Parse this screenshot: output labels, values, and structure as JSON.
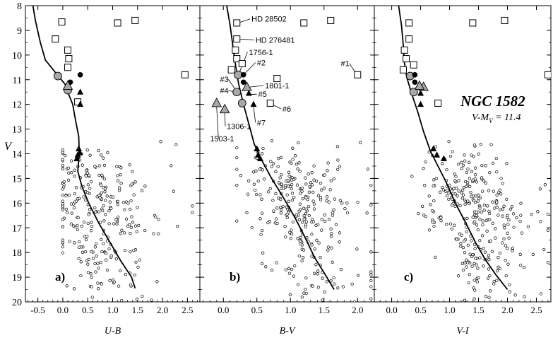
{
  "colors": {
    "ink": "#000000",
    "gray_marker": "#a8a8a8",
    "background": "#ffffff"
  },
  "y_axis_label": "V",
  "chart_data": [
    {
      "type": "scatter",
      "panel_label": "a)",
      "xlabel": "U-B",
      "xlim": [
        -0.75,
        2.75
      ],
      "ylim": [
        20,
        8
      ],
      "y_reversed": true,
      "x_ticks": [
        "-0.5",
        "0.0",
        "0.5",
        "1.0",
        "1.5",
        "2.0",
        "2.5"
      ],
      "x_tick_values": [
        -0.5,
        0.0,
        0.5,
        1.0,
        1.5,
        2.0,
        2.5
      ],
      "y_ticks": [
        "8",
        "9",
        "10",
        "11",
        "12",
        "13",
        "14",
        "15",
        "16",
        "17",
        "18",
        "19",
        "20"
      ],
      "y_tick_values": [
        8,
        9,
        10,
        11,
        12,
        13,
        14,
        15,
        16,
        17,
        18,
        19,
        20
      ],
      "isochrone": [
        [
          -0.6,
          8.0
        ],
        [
          -0.55,
          8.6
        ],
        [
          -0.45,
          9.5
        ],
        [
          -0.35,
          10.2
        ],
        [
          -0.15,
          10.7
        ],
        [
          0.05,
          11.2
        ],
        [
          0.12,
          11.6
        ],
        [
          0.2,
          12.0
        ],
        [
          0.26,
          12.7
        ],
        [
          0.32,
          13.3
        ],
        [
          0.33,
          14.0
        ],
        [
          0.3,
          14.7
        ],
        [
          0.38,
          15.3
        ],
        [
          0.52,
          16.0
        ],
        [
          0.72,
          16.8
        ],
        [
          0.95,
          17.6
        ],
        [
          1.15,
          18.3
        ],
        [
          1.38,
          19.0
        ],
        [
          1.45,
          19.45
        ]
      ],
      "open_squares": [
        [
          -0.02,
          8.66
        ],
        [
          -0.15,
          9.35
        ],
        [
          0.1,
          9.8
        ],
        [
          0.12,
          10.15
        ],
        [
          0.1,
          10.5
        ],
        [
          1.1,
          8.7
        ],
        [
          1.45,
          8.6
        ],
        [
          2.45,
          10.8
        ],
        [
          0.3,
          11.9
        ]
      ],
      "gray_circles": [
        [
          -0.1,
          10.85
        ],
        [
          0.1,
          11.42
        ]
      ],
      "black_circles": [
        [
          0.35,
          10.8
        ],
        [
          0.15,
          11.1
        ]
      ],
      "gray_triangles": [
        [
          0.1,
          11.25
        ]
      ],
      "black_triangles": [
        [
          0.35,
          11.5
        ],
        [
          0.35,
          12.0
        ],
        [
          0.32,
          13.8
        ],
        [
          0.34,
          13.95
        ],
        [
          0.3,
          14.05
        ],
        [
          0.28,
          14.2
        ]
      ],
      "field_seed": 11,
      "field_x_center": 0.65,
      "field_x_spread": 0.55,
      "field_x_min": 0.0,
      "field_x_max": 2.6,
      "field_count": 300
    },
    {
      "type": "scatter",
      "panel_label": "b)",
      "xlabel": "B-V",
      "xlim": [
        -0.35,
        2.25
      ],
      "ylim": [
        20,
        8
      ],
      "y_reversed": true,
      "x_ticks": [
        "0.0",
        "0.5",
        "1.0",
        "1.5",
        "2.0"
      ],
      "x_tick_values": [
        0.0,
        0.5,
        1.0,
        1.5,
        2.0
      ],
      "y_ticks": [
        "8",
        "9",
        "10",
        "11",
        "12",
        "13",
        "14",
        "15",
        "16",
        "17",
        "18",
        "19",
        "20"
      ],
      "y_tick_values": [
        8,
        9,
        10,
        11,
        12,
        13,
        14,
        15,
        16,
        17,
        18,
        19,
        20
      ],
      "isochrone": [
        [
          0.05,
          8.0
        ],
        [
          0.1,
          8.8
        ],
        [
          0.14,
          9.6
        ],
        [
          0.17,
          10.2
        ],
        [
          0.2,
          10.75
        ],
        [
          0.23,
          11.2
        ],
        [
          0.3,
          12.0
        ],
        [
          0.38,
          12.8
        ],
        [
          0.46,
          13.6
        ],
        [
          0.56,
          14.2
        ],
        [
          0.72,
          15.0
        ],
        [
          0.9,
          15.8
        ],
        [
          1.07,
          16.6
        ],
        [
          1.22,
          17.4
        ],
        [
          1.36,
          18.2
        ],
        [
          1.52,
          18.9
        ],
        [
          1.65,
          19.5
        ]
      ],
      "open_squares": [
        [
          0.2,
          8.7
        ],
        [
          0.2,
          9.35
        ],
        [
          0.18,
          9.8
        ],
        [
          0.2,
          10.15
        ],
        [
          0.12,
          10.6
        ],
        [
          0.28,
          10.35
        ],
        [
          0.8,
          10.95
        ],
        [
          0.7,
          11.95
        ],
        [
          1.2,
          8.7
        ],
        [
          1.6,
          8.6
        ],
        [
          2.0,
          10.8
        ]
      ],
      "gray_circles": [
        [
          0.22,
          10.8
        ],
        [
          0.2,
          11.5
        ],
        [
          0.28,
          11.95
        ]
      ],
      "black_circles": [
        [
          0.3,
          10.8
        ],
        [
          0.3,
          11.1
        ]
      ],
      "gray_triangles": [
        [
          0.35,
          11.3
        ],
        [
          -0.1,
          11.95
        ],
        [
          0.02,
          12.2
        ]
      ],
      "black_triangles": [
        [
          0.38,
          11.55
        ],
        [
          0.45,
          12.0
        ],
        [
          0.5,
          13.8
        ],
        [
          0.52,
          14.05
        ],
        [
          0.55,
          14.2
        ]
      ],
      "annotations": [
        {
          "text": "HD 28502",
          "x": 0.42,
          "y": 8.65,
          "px": 0.22,
          "py": 8.7
        },
        {
          "text": "HD 276481",
          "x": 0.48,
          "y": 9.5,
          "px": 0.22,
          "py": 9.35
        },
        {
          "text": "1756-1",
          "x": 0.38,
          "y": 10.0,
          "px": 0.24,
          "py": 10.7
        },
        {
          "text": "#2",
          "x": 0.5,
          "y": 10.42,
          "px": 0.32,
          "py": 10.75
        },
        {
          "text": "#3",
          "x": -0.05,
          "y": 11.1,
          "px": 0.18,
          "py": 11.4
        },
        {
          "text": "1801-1",
          "x": 0.62,
          "y": 11.35,
          "px": 0.38,
          "py": 11.3
        },
        {
          "text": "#4",
          "x": -0.05,
          "y": 11.55,
          "px": 0.17,
          "py": 11.5
        },
        {
          "text": "#5",
          "x": 0.52,
          "y": 11.7,
          "px": 0.4,
          "py": 11.6
        },
        {
          "text": "#6",
          "x": 0.88,
          "y": 12.3,
          "px": 0.73,
          "py": 12.0
        },
        {
          "text": "#7",
          "x": 0.5,
          "y": 12.85,
          "px": 0.45,
          "py": 12.1
        },
        {
          "text": "1306-1",
          "x": 0.05,
          "y": 13.0,
          "px": 0.02,
          "py": 12.3
        },
        {
          "text": "1503-1",
          "x": -0.2,
          "y": 13.5,
          "px": -0.1,
          "py": 12.1
        },
        {
          "text": "#1",
          "x": 1.75,
          "y": 10.45,
          "px": 1.98,
          "py": 10.75
        }
      ],
      "field_seed": 23,
      "field_x_center": 1.12,
      "field_x_spread": 0.38,
      "field_x_min": 0.2,
      "field_x_max": 2.2,
      "field_count": 320
    },
    {
      "type": "scatter",
      "panel_label": "c)",
      "xlabel": "V-I",
      "xlim": [
        -0.3,
        2.75
      ],
      "ylim": [
        20,
        8
      ],
      "y_reversed": true,
      "x_ticks": [
        "0.0",
        "0.5",
        "1.0",
        "1.5",
        "2.0",
        "2.5"
      ],
      "x_tick_values": [
        0.0,
        0.5,
        1.0,
        1.5,
        2.0,
        2.5
      ],
      "y_ticks": [
        "8",
        "9",
        "10",
        "11",
        "12",
        "13",
        "14",
        "15",
        "16",
        "17",
        "18",
        "19",
        "20"
      ],
      "y_tick_values": [
        8,
        9,
        10,
        11,
        12,
        13,
        14,
        15,
        16,
        17,
        18,
        19,
        20
      ],
      "isochrone": [
        [
          0.12,
          8.0
        ],
        [
          0.17,
          8.8
        ],
        [
          0.2,
          9.6
        ],
        [
          0.22,
          10.3
        ],
        [
          0.26,
          10.9
        ],
        [
          0.35,
          11.6
        ],
        [
          0.45,
          12.3
        ],
        [
          0.55,
          13.1
        ],
        [
          0.67,
          13.9
        ],
        [
          0.8,
          14.5
        ],
        [
          0.95,
          15.2
        ],
        [
          1.1,
          16.0
        ],
        [
          1.28,
          16.8
        ],
        [
          1.45,
          17.6
        ],
        [
          1.62,
          18.3
        ],
        [
          1.8,
          18.9
        ],
        [
          2.0,
          19.5
        ]
      ],
      "open_squares": [
        [
          0.3,
          8.7
        ],
        [
          0.3,
          9.35
        ],
        [
          0.22,
          9.8
        ],
        [
          0.25,
          10.15
        ],
        [
          0.2,
          10.6
        ],
        [
          0.38,
          10.4
        ],
        [
          0.8,
          11.95
        ],
        [
          1.4,
          8.7
        ],
        [
          1.95,
          8.6
        ],
        [
          2.7,
          10.8
        ]
      ],
      "gray_circles": [
        [
          0.32,
          10.85
        ],
        [
          0.38,
          11.5
        ]
      ],
      "black_circles": [
        [
          0.4,
          10.8
        ],
        [
          0.4,
          11.1
        ]
      ],
      "gray_triangles": [
        [
          0.55,
          11.3
        ],
        [
          0.48,
          11.25
        ]
      ],
      "black_triangles": [
        [
          0.5,
          11.55
        ],
        [
          0.5,
          12.0
        ],
        [
          0.72,
          13.8
        ],
        [
          0.78,
          14.05
        ],
        [
          0.9,
          14.2
        ]
      ],
      "field_seed": 37,
      "field_x_center": 1.38,
      "field_x_spread": 0.38,
      "field_x_min": 0.35,
      "field_x_max": 2.7,
      "field_count": 340
    }
  ],
  "title_block": {
    "title": "NGC 1582",
    "distance_modulus": "V-M",
    "distance_modulus_sub": "V",
    "distance_modulus_value": " = 11.4"
  }
}
